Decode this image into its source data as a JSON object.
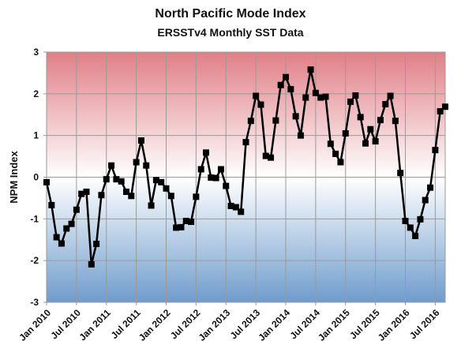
{
  "chart_data": {
    "type": "line",
    "title": "North Pacific Mode Index",
    "subtitle": "ERSSTv4 Monthly SST Data",
    "xlabel": "",
    "ylabel": "NPM Index",
    "ylim": [
      -3,
      3
    ],
    "yticks": [
      "-3",
      "-2",
      "-1",
      "0",
      "1",
      "2",
      "3"
    ],
    "xticks": [
      "Jan 2010",
      "Jul 2010",
      "Jan 2011",
      "Jul 2011",
      "Jan 2012",
      "Jul 2012",
      "Jan 2013",
      "Jul 2013",
      "Jan 2014",
      "Jul 2014",
      "Jan 2015",
      "Jul 2015",
      "Jan 2016",
      "Jul 2016"
    ],
    "x_start": "2010-01",
    "grid": true,
    "background_gradient": {
      "top": "#e07f86",
      "middle": "#ffffff",
      "bottom": "#6f9ccc"
    },
    "line_color": "#000000",
    "marker": "square",
    "series": [
      {
        "name": "",
        "values": [
          -0.12,
          -0.67,
          -1.44,
          -1.59,
          -1.23,
          -1.12,
          -0.78,
          -0.4,
          -0.35,
          -2.09,
          -1.6,
          -0.43,
          -0.05,
          0.28,
          -0.05,
          -0.1,
          -0.35,
          -0.45,
          0.36,
          0.88,
          0.28,
          -0.68,
          -0.07,
          -0.12,
          -0.27,
          -0.45,
          -1.21,
          -1.2,
          -1.05,
          -1.07,
          -0.47,
          0.19,
          0.59,
          -0.01,
          -0.02,
          0.19,
          -0.21,
          -0.69,
          -0.72,
          -0.83,
          0.84,
          1.35,
          1.95,
          1.74,
          0.51,
          0.47,
          1.36,
          2.21,
          2.4,
          2.11,
          1.46,
          1.0,
          1.91,
          2.58,
          2.02,
          1.91,
          1.93,
          0.8,
          0.56,
          0.36,
          1.05,
          1.81,
          1.96,
          1.44,
          0.81,
          1.15,
          0.86,
          1.37,
          1.75,
          1.95,
          1.35,
          0.1,
          -1.05,
          -1.21,
          -1.41,
          -1.01,
          -0.55,
          -0.25,
          0.65,
          1.58,
          1.69
        ]
      }
    ]
  }
}
